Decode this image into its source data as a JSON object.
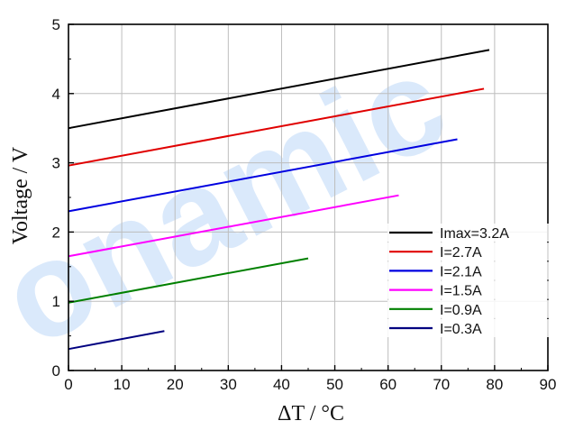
{
  "watermark": "onamic",
  "chart_data": {
    "type": "line",
    "xlabel": "ΔT / °C",
    "ylabel": "Voltage / V",
    "xlim": [
      0,
      90
    ],
    "ylim": [
      0,
      5
    ],
    "xticks": [
      "0",
      "10",
      "20",
      "30",
      "40",
      "50",
      "60",
      "70",
      "80",
      "90"
    ],
    "yticks": [
      "0",
      "1",
      "2",
      "3",
      "4",
      "5"
    ],
    "grid": true,
    "legend_position": "bottom-right",
    "series": [
      {
        "name": "Imax=3.2A",
        "color": "#000000",
        "x": [
          0,
          79
        ],
        "y": [
          3.5,
          4.63
        ]
      },
      {
        "name": "I=2.7A",
        "color": "#e00000",
        "x": [
          0,
          78
        ],
        "y": [
          2.96,
          4.07
        ]
      },
      {
        "name": "I=2.1A",
        "color": "#0000e0",
        "x": [
          0,
          73
        ],
        "y": [
          2.3,
          3.34
        ]
      },
      {
        "name": "I=1.5A",
        "color": "#ff00ff",
        "x": [
          0,
          62
        ],
        "y": [
          1.65,
          2.53
        ]
      },
      {
        "name": "I=0.9A",
        "color": "#008000",
        "x": [
          0,
          45
        ],
        "y": [
          0.98,
          1.62
        ]
      },
      {
        "name": "I=0.3A",
        "color": "#000080",
        "x": [
          0,
          18
        ],
        "y": [
          0.31,
          0.57
        ]
      }
    ]
  }
}
